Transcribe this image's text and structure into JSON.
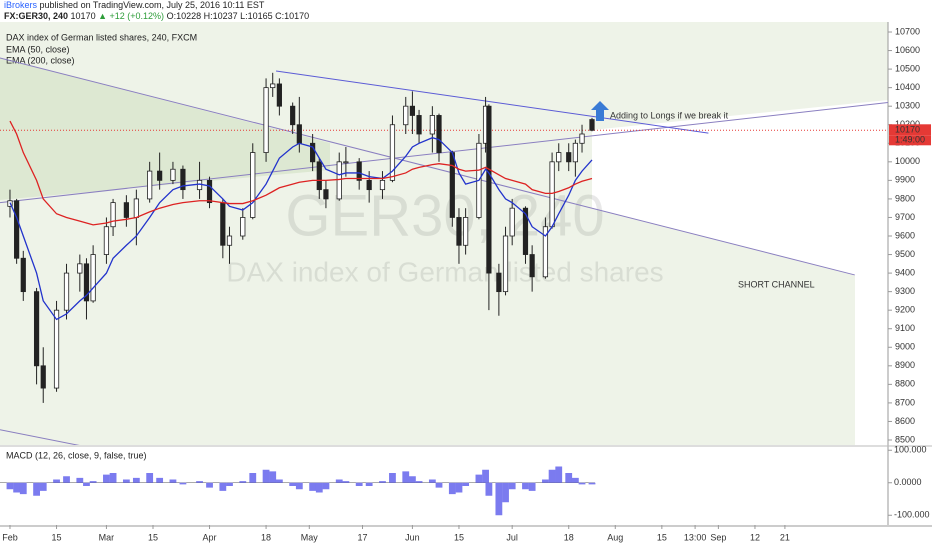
{
  "header": {
    "author": "iBrokers",
    "published": "published on TradingView.com, July 25, 2016 10:11 EST",
    "symbol": "FX:GER30, 240",
    "price": "10170",
    "change": "▲ +12 (+0.12%)",
    "ohlc": "O:10228 H:10237 L:10165 C:10170"
  },
  "chart_data": [
    {
      "type": "candlestick",
      "legend_title": "DAX index of German listed shares, 240, FXCM",
      "watermark": [
        "GER30, 240",
        "DAX index of German listed shares"
      ],
      "x": [
        "02-01",
        "02-03",
        "02-05",
        "02-09",
        "02-11",
        "02-15",
        "02-18",
        "02-22",
        "02-24",
        "02-26",
        "03-01",
        "03-03",
        "03-07",
        "03-10",
        "03-14",
        "03-17",
        "03-21",
        "03-24",
        "03-29",
        "04-01",
        "04-05",
        "04-07",
        "04-11",
        "04-14",
        "04-18",
        "04-20",
        "04-22",
        "04-26",
        "04-28",
        "05-02",
        "05-04",
        "05-06",
        "05-10",
        "05-12",
        "05-16",
        "05-19",
        "05-23",
        "05-26",
        "05-30",
        "06-01",
        "06-03",
        "06-07",
        "06-09",
        "06-13",
        "06-15",
        "06-17",
        "06-21",
        "06-23",
        "06-24",
        "06-27",
        "06-29",
        "07-01",
        "07-05",
        "07-07",
        "07-11",
        "07-13",
        "07-15",
        "07-18",
        "07-20",
        "07-22",
        "07-25"
      ],
      "open": [
        9760,
        9790,
        9480,
        9300,
        8900,
        8780,
        9200,
        9400,
        9450,
        9250,
        9500,
        9650,
        9780,
        9700,
        9800,
        9950,
        9900,
        9960,
        9850,
        9900,
        9780,
        9550,
        9600,
        9700,
        10050,
        10400,
        10420,
        10300,
        10200,
        10100,
        10000,
        9850,
        9800,
        10000,
        10000,
        9900,
        9850,
        9900,
        10200,
        10300,
        10250,
        10150,
        10250,
        10050,
        9700,
        9550,
        9700,
        10100,
        10300,
        9400,
        9300,
        9600,
        9750,
        9500,
        9380,
        9650,
        10000,
        10050,
        10000,
        10100,
        10228
      ],
      "high": [
        9850,
        9800,
        9520,
        9320,
        9000,
        9250,
        9450,
        9500,
        9480,
        9550,
        9700,
        9800,
        9820,
        9850,
        10000,
        10050,
        10000,
        9980,
        10000,
        9920,
        9800,
        9650,
        9750,
        10100,
        10450,
        10480,
        10450,
        10320,
        10350,
        10150,
        10020,
        9900,
        10050,
        10080,
        10020,
        9950,
        9950,
        10250,
        10350,
        10380,
        10280,
        10300,
        10260,
        10060,
        9750,
        9750,
        10150,
        10350,
        10310,
        9450,
        9650,
        9800,
        9760,
        9550,
        9700,
        10050,
        10100,
        10100,
        10120,
        10200,
        10237
      ],
      "low": [
        9700,
        9450,
        9250,
        8800,
        8700,
        8760,
        9150,
        9300,
        9150,
        9240,
        9450,
        9600,
        9650,
        9550,
        9780,
        9850,
        9880,
        9800,
        9800,
        9750,
        9480,
        9450,
        9580,
        9690,
        10000,
        10350,
        10250,
        10150,
        10050,
        9950,
        9800,
        9750,
        9790,
        9920,
        9850,
        9780,
        9800,
        9890,
        10150,
        10150,
        10100,
        10050,
        10000,
        9650,
        9450,
        9500,
        9690,
        10050,
        9200,
        9170,
        9280,
        9550,
        9450,
        9300,
        9370,
        9640,
        9950,
        9950,
        9920,
        10050,
        10165
      ],
      "close": [
        9790,
        9480,
        9300,
        8900,
        8780,
        9200,
        9400,
        9450,
        9250,
        9500,
        9650,
        9780,
        9700,
        9800,
        9950,
        9900,
        9960,
        9850,
        9900,
        9780,
        9550,
        9600,
        9700,
        10050,
        10400,
        10420,
        10300,
        10200,
        10100,
        10000,
        9850,
        9800,
        10000,
        10000,
        9900,
        9850,
        9900,
        10200,
        10300,
        10250,
        10150,
        10250,
        10050,
        9700,
        9550,
        9700,
        10100,
        10300,
        9400,
        9300,
        9600,
        9750,
        9500,
        9380,
        9650,
        10000,
        10050,
        10000,
        10100,
        10150,
        10170
      ],
      "up_color": "#ffffff",
      "down_color": "#222222",
      "wick_color": "#222222",
      "series": [
        {
          "name": "EMA (50, close)",
          "color": "#2233cc",
          "values": [
            9780,
            9700,
            9600,
            9400,
            9250,
            9150,
            9180,
            9250,
            9280,
            9320,
            9400,
            9480,
            9550,
            9600,
            9700,
            9780,
            9850,
            9870,
            9880,
            9870,
            9800,
            9760,
            9740,
            9780,
            9880,
            9950,
            10020,
            10080,
            10100,
            10080,
            10020,
            9960,
            9930,
            9940,
            9940,
            9920,
            9910,
            9950,
            10030,
            10080,
            10100,
            10130,
            10120,
            10050,
            9940,
            9880,
            9900,
            9960,
            9940,
            9850,
            9800,
            9780,
            9720,
            9650,
            9600,
            9650,
            9720,
            9820,
            9900,
            9950,
            10010
          ]
        },
        {
          "name": "EMA (200, close)",
          "color": "#dd2222",
          "values": [
            10220,
            10150,
            10050,
            9900,
            9800,
            9720,
            9700,
            9680,
            9670,
            9660,
            9670,
            9680,
            9690,
            9700,
            9730,
            9750,
            9770,
            9780,
            9790,
            9790,
            9780,
            9775,
            9775,
            9790,
            9820,
            9840,
            9860,
            9880,
            9890,
            9900,
            9900,
            9900,
            9905,
            9910,
            9910,
            9910,
            9910,
            9920,
            9940,
            9960,
            9970,
            9985,
            9990,
            9980,
            9960,
            9950,
            9955,
            9970,
            9960,
            9930,
            9910,
            9900,
            9880,
            9850,
            9830,
            9830,
            9840,
            9860,
            9880,
            9895,
            9910
          ]
        }
      ],
      "trendlines": [
        {
          "x": [
            "01-29",
            "10-22"
          ],
          "y": [
            9780,
            10320
          ],
          "color": "#8a7fc0"
        },
        {
          "x": [
            "01-29",
            "10-12"
          ],
          "y": [
            10560,
            9390
          ],
          "color": "#8a7fc0"
        },
        {
          "x": [
            "01-29",
            "02-22"
          ],
          "y": [
            8555,
            8470
          ],
          "color": "#8a7fc0"
        },
        {
          "x": [
            "04-21",
            "08-29"
          ],
          "y": [
            10490,
            10155
          ],
          "color": "#5b5bd6"
        }
      ],
      "last_price": 10170,
      "last_price_color": "#e53935",
      "countdown": "1:49:00",
      "annotations": [
        {
          "text": "Adding to Longs if we break it",
          "color": "#2e7d32"
        },
        {
          "text": "SHORT CHANNEL",
          "color": "#e53935"
        }
      ],
      "arrow_color": "#3a7bd5",
      "xlim": [
        "01-29",
        "10-22"
      ],
      "xticks": [
        {
          "value": "02-01",
          "label": "Feb"
        },
        {
          "value": "02-15",
          "label": "15"
        },
        {
          "value": "03-01",
          "label": "Mar"
        },
        {
          "value": "03-15",
          "label": "15"
        },
        {
          "value": "04-01",
          "label": "Apr"
        },
        {
          "value": "04-18",
          "label": "18"
        },
        {
          "value": "05-01",
          "label": "May"
        },
        {
          "value": "05-17",
          "label": "17"
        },
        {
          "value": "06-01",
          "label": "Jun"
        },
        {
          "value": "06-15",
          "label": "15"
        },
        {
          "value": "07-01",
          "label": "Jul"
        },
        {
          "value": "07-18",
          "label": "18"
        },
        {
          "value": "08-01",
          "label": "Aug"
        },
        {
          "value": "08-15",
          "label": "15"
        },
        {
          "value": "08-25",
          "label": "13:00"
        },
        {
          "value": "09-01",
          "label": "Sep"
        },
        {
          "value": "09-12",
          "label": "12"
        },
        {
          "value": "09-21",
          "label": "21"
        }
      ],
      "ylim": [
        8473,
        10754
      ],
      "yticks": [
        8500,
        8600,
        8700,
        8800,
        8900,
        9000,
        9100,
        9200,
        9300,
        9400,
        9500,
        9600,
        9700,
        9800,
        9900,
        10000,
        10100,
        10200,
        10300,
        10400,
        10500,
        10600,
        10700
      ]
    },
    {
      "type": "bar",
      "title": "MACD (12, 26, close, 9, false, true)",
      "x": [
        "02-01",
        "02-03",
        "02-05",
        "02-09",
        "02-11",
        "02-15",
        "02-18",
        "02-22",
        "02-24",
        "02-26",
        "03-01",
        "03-03",
        "03-07",
        "03-10",
        "03-14",
        "03-17",
        "03-21",
        "03-24",
        "03-29",
        "04-01",
        "04-05",
        "04-07",
        "04-11",
        "04-14",
        "04-18",
        "04-20",
        "04-22",
        "04-26",
        "04-28",
        "05-02",
        "05-04",
        "05-06",
        "05-10",
        "05-12",
        "05-16",
        "05-19",
        "05-23",
        "05-26",
        "05-30",
        "06-01",
        "06-03",
        "06-07",
        "06-09",
        "06-13",
        "06-15",
        "06-17",
        "06-21",
        "06-23",
        "06-24",
        "06-27",
        "06-29",
        "07-01",
        "07-05",
        "07-07",
        "07-11",
        "07-13",
        "07-15",
        "07-18",
        "07-20",
        "07-22",
        "07-25"
      ],
      "values": [
        -20,
        -30,
        -35,
        -40,
        -25,
        10,
        20,
        15,
        -10,
        5,
        25,
        30,
        10,
        15,
        30,
        15,
        10,
        -5,
        5,
        -15,
        -25,
        -10,
        5,
        30,
        40,
        35,
        10,
        -10,
        -20,
        -25,
        -30,
        -20,
        10,
        5,
        -10,
        -10,
        5,
        30,
        35,
        20,
        5,
        10,
        -15,
        -35,
        -30,
        -10,
        25,
        40,
        -40,
        -100,
        -60,
        -20,
        -20,
        -25,
        10,
        40,
        50,
        30,
        15,
        -5,
        -5
      ],
      "color": "#7b7bef",
      "ylim": [
        -130,
        110
      ],
      "yticks": [
        {
          "value": 100,
          "label": "100.000"
        },
        {
          "value": 0,
          "label": "0.0000"
        },
        {
          "value": -100,
          "label": "-100.000"
        }
      ]
    }
  ]
}
